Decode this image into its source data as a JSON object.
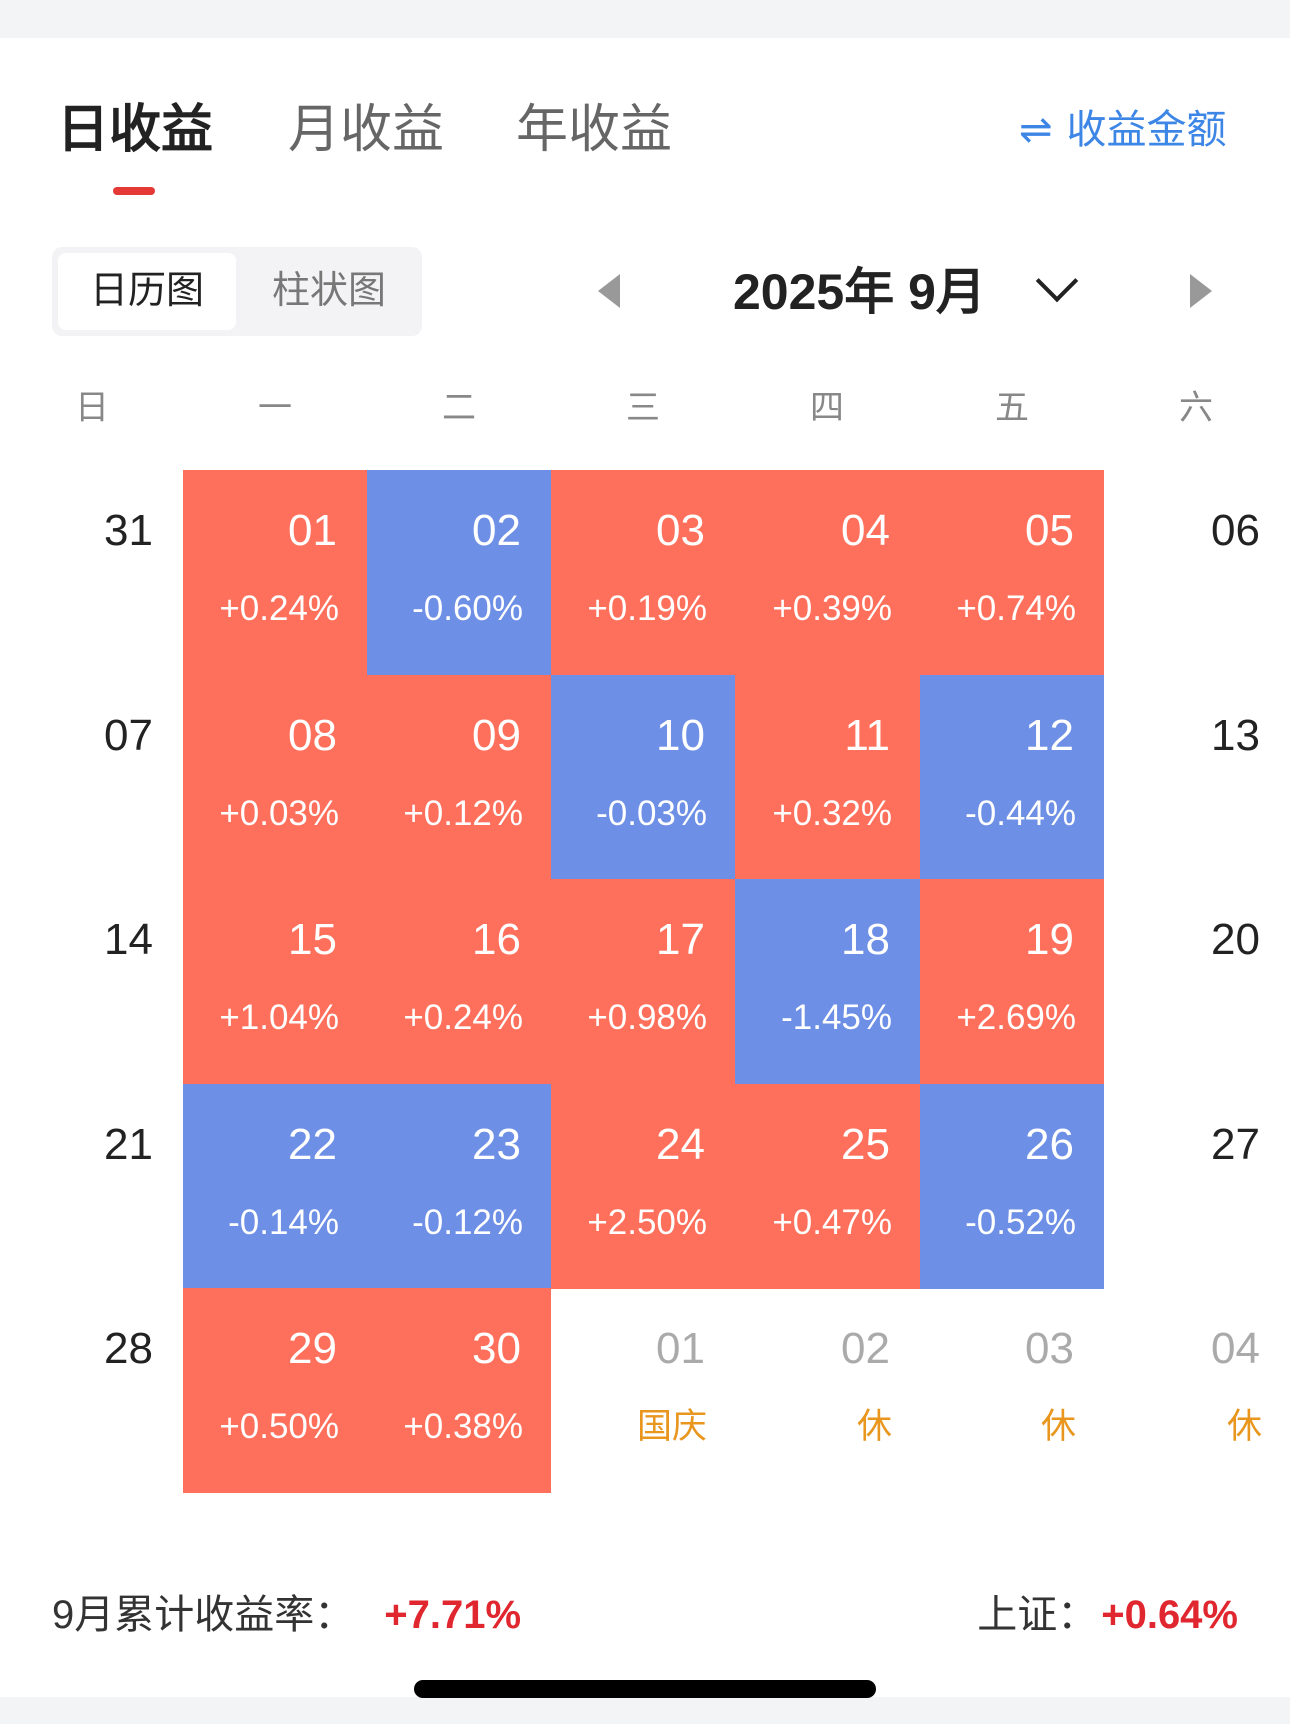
{
  "tabs": [
    {
      "label": "日收益",
      "active": true
    },
    {
      "label": "月收益",
      "active": false
    },
    {
      "label": "年收益",
      "active": false
    }
  ],
  "switch_link": {
    "icon": "swap-arrows-icon",
    "icon_glyph": "⇌",
    "label": "收益金额"
  },
  "view_toggle": {
    "options": [
      "日历图",
      "柱状图"
    ],
    "selected": "日历图"
  },
  "month_nav": {
    "title": "2025年 9月"
  },
  "weekdays": [
    "日",
    "一",
    "二",
    "三",
    "四",
    "五",
    "六"
  ],
  "colors": {
    "up": "#ff705c",
    "down": "#6d8fe5",
    "holiday": "#e8961e",
    "positive_text": "#e0262e",
    "accent": "#3d86e6"
  },
  "calendar": [
    [
      {
        "day": "31",
        "sub": "",
        "state": "none"
      },
      {
        "day": "01",
        "sub": "+0.24%",
        "state": "up"
      },
      {
        "day": "02",
        "sub": "-0.60%",
        "state": "down"
      },
      {
        "day": "03",
        "sub": "+0.19%",
        "state": "up"
      },
      {
        "day": "04",
        "sub": "+0.39%",
        "state": "up"
      },
      {
        "day": "05",
        "sub": "+0.74%",
        "state": "up"
      },
      {
        "day": "06",
        "sub": "",
        "state": "none"
      }
    ],
    [
      {
        "day": "07",
        "sub": "",
        "state": "none"
      },
      {
        "day": "08",
        "sub": "+0.03%",
        "state": "up"
      },
      {
        "day": "09",
        "sub": "+0.12%",
        "state": "up"
      },
      {
        "day": "10",
        "sub": "-0.03%",
        "state": "down"
      },
      {
        "day": "11",
        "sub": "+0.32%",
        "state": "up"
      },
      {
        "day": "12",
        "sub": "-0.44%",
        "state": "down"
      },
      {
        "day": "13",
        "sub": "",
        "state": "none"
      }
    ],
    [
      {
        "day": "14",
        "sub": "",
        "state": "none"
      },
      {
        "day": "15",
        "sub": "+1.04%",
        "state": "up"
      },
      {
        "day": "16",
        "sub": "+0.24%",
        "state": "up"
      },
      {
        "day": "17",
        "sub": "+0.98%",
        "state": "up"
      },
      {
        "day": "18",
        "sub": "-1.45%",
        "state": "down"
      },
      {
        "day": "19",
        "sub": "+2.69%",
        "state": "up"
      },
      {
        "day": "20",
        "sub": "",
        "state": "none"
      }
    ],
    [
      {
        "day": "21",
        "sub": "",
        "state": "none"
      },
      {
        "day": "22",
        "sub": "-0.14%",
        "state": "down"
      },
      {
        "day": "23",
        "sub": "-0.12%",
        "state": "down"
      },
      {
        "day": "24",
        "sub": "+2.50%",
        "state": "up"
      },
      {
        "day": "25",
        "sub": "+0.47%",
        "state": "up"
      },
      {
        "day": "26",
        "sub": "-0.52%",
        "state": "down"
      },
      {
        "day": "27",
        "sub": "",
        "state": "none"
      }
    ],
    [
      {
        "day": "28",
        "sub": "",
        "state": "none"
      },
      {
        "day": "29",
        "sub": "+0.50%",
        "state": "up"
      },
      {
        "day": "30",
        "sub": "+0.38%",
        "state": "up"
      },
      {
        "day": "01",
        "sub": "国庆",
        "state": "muted"
      },
      {
        "day": "02",
        "sub": "休",
        "state": "muted"
      },
      {
        "day": "03",
        "sub": "休",
        "state": "muted"
      },
      {
        "day": "04",
        "sub": "休",
        "state": "muted"
      }
    ]
  ],
  "footer": {
    "cumulative_label": "9月累计收益率：",
    "cumulative_value": "+7.71%",
    "index_label": "上证：",
    "index_value": "+0.64%"
  }
}
